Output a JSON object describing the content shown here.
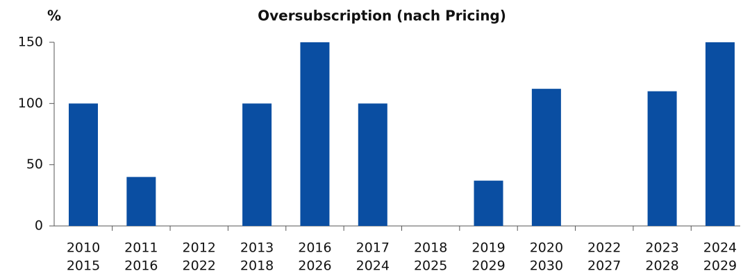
{
  "chart_data": {
    "type": "bar",
    "title": "Oversubscription (nach Pricing)",
    "y_label": "%",
    "categories": [
      [
        "2010",
        "2015"
      ],
      [
        "2011",
        "2016"
      ],
      [
        "2012",
        "2022"
      ],
      [
        "2013",
        "2018"
      ],
      [
        "2016",
        "2026"
      ],
      [
        "2017",
        "2024"
      ],
      [
        "2018",
        "2025"
      ],
      [
        "2019",
        "2029"
      ],
      [
        "2020",
        "2030"
      ],
      [
        "2022",
        "2027"
      ],
      [
        "2023",
        "2028"
      ],
      [
        "2024",
        "2029"
      ]
    ],
    "values": [
      100,
      40,
      0,
      100,
      150,
      100,
      0,
      37,
      112,
      0,
      110,
      150
    ],
    "color": "#0a4ea2",
    "ylim": [
      0,
      150
    ],
    "yticks": [
      0,
      50,
      100,
      150
    ],
    "grid": false
  }
}
